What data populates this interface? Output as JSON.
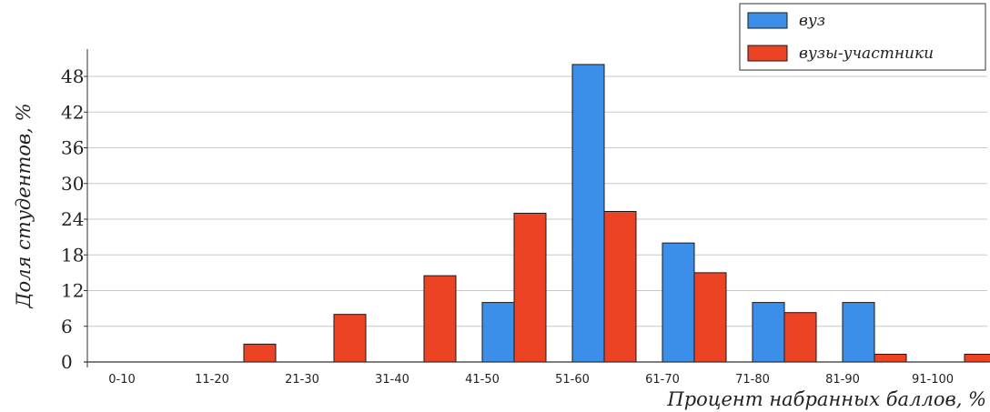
{
  "chart_data": {
    "type": "bar",
    "categories": [
      "0-10",
      "11-20",
      "21-30",
      "31-40",
      "41-50",
      "51-60",
      "61-70",
      "71-80",
      "81-90",
      "91-100"
    ],
    "series": [
      {
        "name": "вуз",
        "color": "#3b8fe8",
        "values": [
          0,
          0,
          0,
          0,
          10,
          50,
          20,
          10,
          10,
          0
        ]
      },
      {
        "name": "вузы-участники",
        "color": "#ec4325",
        "values": [
          0,
          3,
          8,
          14.5,
          25,
          25.3,
          15,
          8.3,
          1.3,
          1.3
        ]
      }
    ],
    "xlabel": "Процент набранных баллов, %",
    "ylabel": "Доля студентов, %",
    "yticks": [
      0,
      6,
      12,
      18,
      24,
      30,
      36,
      42,
      48
    ],
    "ylim": [
      0,
      48
    ],
    "grid": true,
    "legend_position": "top-right"
  }
}
